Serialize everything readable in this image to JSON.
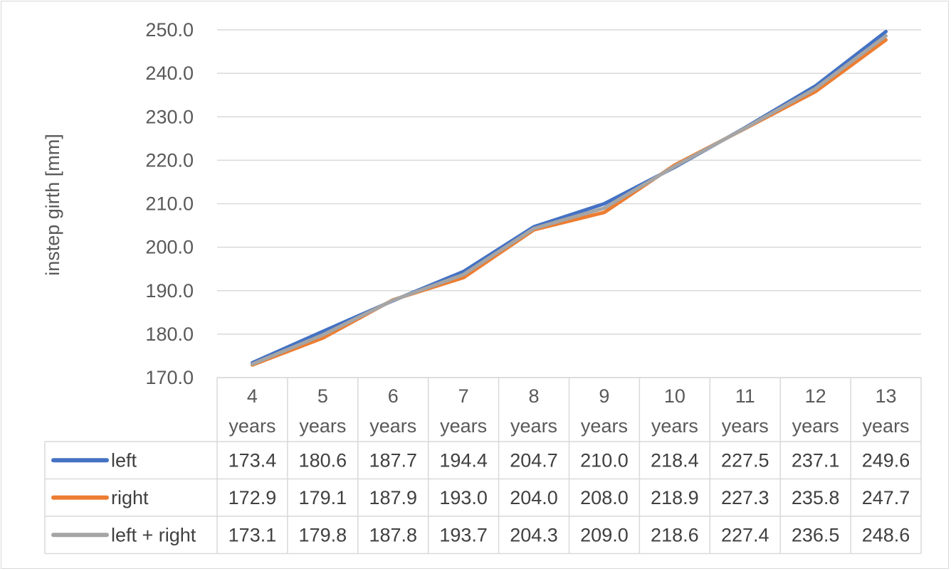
{
  "chart_data": {
    "type": "line",
    "title": "",
    "xlabel": "",
    "ylabel": "instep girth [mm]",
    "ylim": [
      170,
      250
    ],
    "yticks": [
      "170.0",
      "180.0",
      "190.0",
      "200.0",
      "210.0",
      "220.0",
      "230.0",
      "240.0",
      "250.0"
    ],
    "grid": true,
    "legend": "data-table-left",
    "categories": [
      [
        "4",
        "years"
      ],
      [
        "5",
        "years"
      ],
      [
        "6",
        "years"
      ],
      [
        "7",
        "years"
      ],
      [
        "8",
        "years"
      ],
      [
        "9",
        "years"
      ],
      [
        "10",
        "years"
      ],
      [
        "11",
        "years"
      ],
      [
        "12",
        "years"
      ],
      [
        "13",
        "years"
      ]
    ],
    "series": [
      {
        "name": "left",
        "color": "#4472c4",
        "values": [
          173.4,
          180.6,
          187.7,
          194.4,
          204.7,
          210.0,
          218.4,
          227.5,
          237.1,
          249.6
        ],
        "labels": [
          "173.4",
          "180.6",
          "187.7",
          "194.4",
          "204.7",
          "210.0",
          "218.4",
          "227.5",
          "237.1",
          "249.6"
        ]
      },
      {
        "name": "right",
        "color": "#ed7d31",
        "values": [
          172.9,
          179.1,
          187.9,
          193.0,
          204.0,
          208.0,
          218.9,
          227.3,
          235.8,
          247.7
        ],
        "labels": [
          "172.9",
          "179.1",
          "187.9",
          "193.0",
          "204.0",
          "208.0",
          "218.9",
          "227.3",
          "235.8",
          "247.7"
        ]
      },
      {
        "name": "left + right",
        "color": "#a5a5a5",
        "values": [
          173.1,
          179.8,
          187.8,
          193.7,
          204.3,
          209.0,
          218.6,
          227.4,
          236.5,
          248.6
        ],
        "labels": [
          "173.1",
          "179.8",
          "187.8",
          "193.7",
          "204.3",
          "209.0",
          "218.6",
          "227.4",
          "236.5",
          "248.6"
        ]
      }
    ]
  }
}
